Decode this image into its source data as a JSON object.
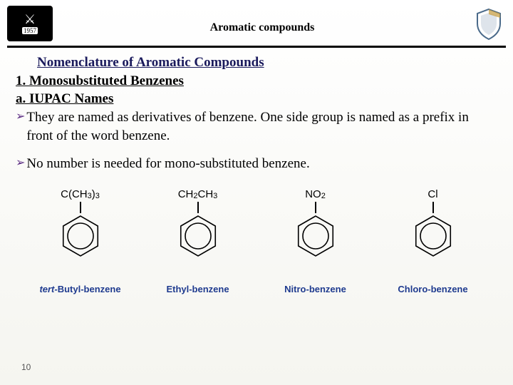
{
  "header": {
    "title": "Aromatic compounds",
    "logo_year": "1957"
  },
  "content": {
    "nomenclature_heading": "Nomenclature of Aromatic Compounds",
    "sub1": "1. Monosubstituted Benzenes",
    "sub2": "a. IUPAC Names",
    "bullet1": "They are named as derivatives of benzene. One side group is named as a prefix in front of the word benzene.",
    "bullet2": " No number is needed for mono-substituted benzene."
  },
  "figures": [
    {
      "substituent_html": "C(CH<sub>3</sub>)<sub>3</sub>",
      "name_prefix_italic": "tert-",
      "name_rest": "Butyl-benzene"
    },
    {
      "substituent_html": "CH<sub>2</sub>CH<sub>3</sub>",
      "name_prefix_italic": "",
      "name_rest": "Ethyl-benzene"
    },
    {
      "substituent_html": "NO<sub>2</sub>",
      "name_prefix_italic": "",
      "name_rest": "Nitro-benzene"
    },
    {
      "substituent_html": "Cl",
      "name_prefix_italic": "",
      "name_rest": "Chloro-benzene"
    }
  ],
  "styling": {
    "ring": {
      "hex_radius": 28,
      "circle_radius": 18,
      "stroke": "#000000",
      "stroke_width": 1.6
    },
    "shield": {
      "inner_fill": "#aebfcf",
      "outer_stroke": "#4a6a8a",
      "accent": "#c59a3a"
    },
    "name_color": "#1f3b8f",
    "heading_color": "#1a1a5c",
    "arrow_color": "#5a2a82"
  },
  "page_number": "10"
}
